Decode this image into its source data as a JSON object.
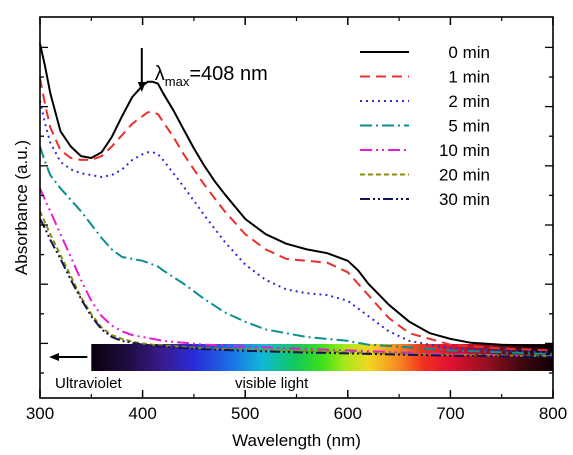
{
  "chart_data": {
    "type": "line",
    "xlabel": "Wavelength (nm)",
    "ylabel": "Absorbance (a.u.)",
    "xlim": [
      300,
      800
    ],
    "ylim": [
      0,
      1
    ],
    "xticks": [
      300,
      400,
      500,
      600,
      700,
      800
    ],
    "grid": false,
    "legend_position": "top-right",
    "annotation": {
      "symbol": "λ",
      "subscript": "max",
      "text": "=408 nm",
      "x": 408
    },
    "spectrum_bar": {
      "left_label": "Ultraviolet",
      "right_label": "visible light",
      "x_start": 350,
      "x_end": 800
    },
    "series": [
      {
        "name": "0 min",
        "color": "#000000",
        "dash": "solid",
        "x": [
          300,
          305,
          310,
          320,
          330,
          340,
          350,
          360,
          370,
          380,
          390,
          400,
          405,
          410,
          415,
          420,
          430,
          440,
          450,
          460,
          470,
          480,
          500,
          520,
          540,
          560,
          580,
          600,
          610,
          620,
          640,
          660,
          680,
          700,
          720,
          750,
          800
        ],
        "y": [
          0.93,
          0.87,
          0.8,
          0.7,
          0.66,
          0.635,
          0.63,
          0.645,
          0.685,
          0.74,
          0.79,
          0.82,
          0.83,
          0.83,
          0.825,
          0.8,
          0.755,
          0.705,
          0.655,
          0.61,
          0.57,
          0.535,
          0.47,
          0.43,
          0.405,
          0.39,
          0.38,
          0.36,
          0.335,
          0.3,
          0.245,
          0.2,
          0.17,
          0.155,
          0.145,
          0.14,
          0.135
        ]
      },
      {
        "name": "1 min",
        "color": "#e8302c",
        "dash": "10,6",
        "x": [
          300,
          305,
          310,
          320,
          330,
          340,
          350,
          360,
          370,
          380,
          390,
          400,
          405,
          410,
          415,
          420,
          430,
          440,
          450,
          460,
          480,
          500,
          520,
          540,
          560,
          580,
          600,
          620,
          640,
          660,
          700,
          750,
          800
        ],
        "y": [
          0.84,
          0.77,
          0.71,
          0.65,
          0.63,
          0.625,
          0.625,
          0.635,
          0.66,
          0.69,
          0.72,
          0.74,
          0.75,
          0.75,
          0.745,
          0.725,
          0.685,
          0.64,
          0.6,
          0.56,
          0.49,
          0.43,
          0.39,
          0.365,
          0.36,
          0.355,
          0.33,
          0.27,
          0.21,
          0.17,
          0.14,
          0.13,
          0.125
        ]
      },
      {
        "name": "2 min",
        "color": "#2d2dd6",
        "dash": "2,4",
        "x": [
          300,
          305,
          310,
          320,
          330,
          340,
          350,
          360,
          370,
          380,
          390,
          400,
          405,
          410,
          415,
          420,
          440,
          460,
          480,
          500,
          520,
          540,
          560,
          580,
          600,
          620,
          640,
          660,
          700,
          750,
          800
        ],
        "y": [
          0.78,
          0.72,
          0.67,
          0.62,
          0.6,
          0.59,
          0.585,
          0.58,
          0.585,
          0.6,
          0.625,
          0.64,
          0.645,
          0.645,
          0.64,
          0.625,
          0.555,
          0.48,
          0.41,
          0.35,
          0.31,
          0.285,
          0.275,
          0.27,
          0.255,
          0.215,
          0.175,
          0.15,
          0.13,
          0.125,
          0.12
        ]
      },
      {
        "name": "5 min",
        "color": "#0a8e8e",
        "dash": "12,4,2,4",
        "x": [
          300,
          305,
          310,
          320,
          330,
          340,
          350,
          360,
          370,
          380,
          390,
          400,
          405,
          410,
          415,
          420,
          440,
          460,
          480,
          500,
          520,
          540,
          560,
          580,
          600,
          620,
          650,
          700,
          750,
          800
        ],
        "y": [
          0.66,
          0.62,
          0.585,
          0.55,
          0.52,
          0.49,
          0.455,
          0.42,
          0.39,
          0.37,
          0.365,
          0.36,
          0.355,
          0.35,
          0.345,
          0.335,
          0.3,
          0.26,
          0.225,
          0.2,
          0.18,
          0.17,
          0.16,
          0.155,
          0.15,
          0.14,
          0.135,
          0.125,
          0.12,
          0.115
        ]
      },
      {
        "name": "10 min",
        "color": "#e21fd2",
        "dash": "12,4,2,4,2,4",
        "x": [
          300,
          305,
          310,
          320,
          330,
          340,
          350,
          360,
          370,
          380,
          390,
          400,
          410,
          420,
          440,
          460,
          480,
          500,
          550,
          600,
          650,
          700,
          800
        ],
        "y": [
          0.55,
          0.52,
          0.49,
          0.43,
          0.37,
          0.31,
          0.255,
          0.215,
          0.19,
          0.175,
          0.165,
          0.16,
          0.155,
          0.15,
          0.145,
          0.14,
          0.138,
          0.135,
          0.13,
          0.125,
          0.12,
          0.115,
          0.11
        ]
      },
      {
        "name": "20 min",
        "color": "#8a8a10",
        "dash": "5,3",
        "x": [
          300,
          305,
          310,
          320,
          330,
          340,
          350,
          360,
          370,
          380,
          390,
          400,
          410,
          420,
          440,
          460,
          480,
          500,
          550,
          600,
          650,
          700,
          800
        ],
        "y": [
          0.49,
          0.46,
          0.43,
          0.375,
          0.32,
          0.265,
          0.22,
          0.185,
          0.165,
          0.155,
          0.148,
          0.143,
          0.14,
          0.138,
          0.134,
          0.131,
          0.129,
          0.127,
          0.124,
          0.12,
          0.116,
          0.113,
          0.11
        ]
      },
      {
        "name": "30 min",
        "color": "#14145a",
        "dash": "10,3,2,3,2,3",
        "x": [
          300,
          305,
          310,
          320,
          330,
          340,
          350,
          360,
          370,
          380,
          390,
          400,
          410,
          420,
          440,
          460,
          480,
          500,
          550,
          600,
          650,
          700,
          800
        ],
        "y": [
          0.47,
          0.445,
          0.415,
          0.365,
          0.31,
          0.26,
          0.215,
          0.18,
          0.16,
          0.15,
          0.145,
          0.14,
          0.137,
          0.135,
          0.131,
          0.128,
          0.126,
          0.124,
          0.12,
          0.117,
          0.114,
          0.111,
          0.108
        ]
      }
    ]
  }
}
